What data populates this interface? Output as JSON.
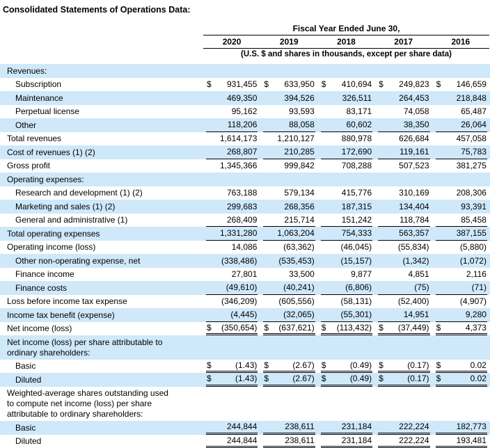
{
  "title": "Consolidated Statements of Operations Data:",
  "table": {
    "currency_symbol": "$",
    "header": {
      "group_label": "Fiscal Year Ended June 30,",
      "years": [
        "2020",
        "2019",
        "2018",
        "2017",
        "2016"
      ],
      "units_note": "(U.S. $ and shares in thousands, except per share data)"
    },
    "rows": [
      {
        "label": "Revenues:",
        "indent": 0,
        "stripe": true,
        "dollar": false,
        "underline": "none",
        "values": [
          "",
          "",
          "",
          "",
          ""
        ]
      },
      {
        "label": "Subscription",
        "indent": 1,
        "stripe": false,
        "dollar": true,
        "underline": "none",
        "values": [
          "931,455",
          "633,950",
          "410,694",
          "249,823",
          "146,659"
        ]
      },
      {
        "label": "Maintenance",
        "indent": 1,
        "stripe": true,
        "dollar": false,
        "underline": "none",
        "values": [
          "469,350",
          "394,526",
          "326,511",
          "264,453",
          "218,848"
        ]
      },
      {
        "label": "Perpetual license",
        "indent": 1,
        "stripe": false,
        "dollar": false,
        "underline": "none",
        "values": [
          "95,162",
          "93,593",
          "83,171",
          "74,058",
          "65,487"
        ]
      },
      {
        "label": "Other",
        "indent": 1,
        "stripe": true,
        "dollar": false,
        "underline": "single",
        "values": [
          "118,206",
          "88,058",
          "60,602",
          "38,350",
          "26,064"
        ]
      },
      {
        "label": "Total revenues",
        "indent": 0,
        "stripe": false,
        "dollar": false,
        "underline": "none",
        "values": [
          "1,614,173",
          "1,210,127",
          "880,978",
          "626,684",
          "457,058"
        ]
      },
      {
        "label": "Cost of revenues (1) (2)",
        "indent": 0,
        "stripe": true,
        "dollar": false,
        "underline": "single",
        "values": [
          "268,807",
          "210,285",
          "172,690",
          "119,161",
          "75,783"
        ]
      },
      {
        "label": "Gross profit",
        "indent": 0,
        "stripe": false,
        "dollar": false,
        "underline": "none",
        "values": [
          "1,345,366",
          "999,842",
          "708,288",
          "507,523",
          "381,275"
        ]
      },
      {
        "label": "Operating expenses:",
        "indent": 0,
        "stripe": true,
        "dollar": false,
        "underline": "none",
        "values": [
          "",
          "",
          "",
          "",
          ""
        ]
      },
      {
        "label": "Research and development (1) (2)",
        "indent": 1,
        "stripe": false,
        "dollar": false,
        "underline": "none",
        "values": [
          "763,188",
          "579,134",
          "415,776",
          "310,169",
          "208,306"
        ]
      },
      {
        "label": "Marketing and sales (1) (2)",
        "indent": 1,
        "stripe": true,
        "dollar": false,
        "underline": "none",
        "values": [
          "299,683",
          "268,356",
          "187,315",
          "134,404",
          "93,391"
        ]
      },
      {
        "label": "General and administrative (1)",
        "indent": 1,
        "stripe": false,
        "dollar": false,
        "underline": "single",
        "values": [
          "268,409",
          "215,714",
          "151,242",
          "118,784",
          "85,458"
        ]
      },
      {
        "label": "Total operating expenses",
        "indent": 0,
        "stripe": true,
        "dollar": false,
        "underline": "single",
        "values": [
          "1,331,280",
          "1,063,204",
          "754,333",
          "563,357",
          "387,155"
        ]
      },
      {
        "label": "Operating income (loss)",
        "indent": 0,
        "stripe": false,
        "dollar": false,
        "underline": "none",
        "values": [
          "14,086",
          "(63,362)",
          "(46,045)",
          "(55,834)",
          "(5,880)"
        ]
      },
      {
        "label": "Other non-operating expense, net",
        "indent": 1,
        "stripe": true,
        "dollar": false,
        "underline": "none",
        "values": [
          "(338,486)",
          "(535,453)",
          "(15,157)",
          "(1,342)",
          "(1,072)"
        ]
      },
      {
        "label": "Finance income",
        "indent": 1,
        "stripe": false,
        "dollar": false,
        "underline": "none",
        "values": [
          "27,801",
          "33,500",
          "9,877",
          "4,851",
          "2,116"
        ]
      },
      {
        "label": "Finance costs",
        "indent": 1,
        "stripe": true,
        "dollar": false,
        "underline": "single",
        "values": [
          "(49,610)",
          "(40,241)",
          "(6,806)",
          "(75)",
          "(71)"
        ]
      },
      {
        "label": "Loss before income tax expense",
        "indent": 0,
        "stripe": false,
        "dollar": false,
        "underline": "none",
        "values": [
          "(346,209)",
          "(605,556)",
          "(58,131)",
          "(52,400)",
          "(4,907)"
        ]
      },
      {
        "label": "Income tax benefit (expense)",
        "indent": 0,
        "stripe": true,
        "dollar": false,
        "underline": "single",
        "values": [
          "(4,445)",
          "(32,065)",
          "(55,301)",
          "14,951",
          "9,280"
        ]
      },
      {
        "label": "Net income (loss)",
        "indent": 0,
        "stripe": false,
        "dollar": true,
        "underline": "double",
        "values": [
          "(350,654)",
          "(637,621)",
          "(113,432)",
          "(37,449)",
          "4,373"
        ]
      },
      {
        "label": "Net income (loss) per share attributable to ordinary shareholders:",
        "indent": 0,
        "stripe": true,
        "dollar": false,
        "underline": "none",
        "values": [
          "",
          "",
          "",
          "",
          ""
        ]
      },
      {
        "label": "Basic",
        "indent": 1,
        "stripe": false,
        "dollar": true,
        "underline": "double",
        "values": [
          "(1.43)",
          "(2.67)",
          "(0.49)",
          "(0.17)",
          "0.02"
        ]
      },
      {
        "label": "Diluted",
        "indent": 1,
        "stripe": true,
        "dollar": true,
        "underline": "double",
        "values": [
          "(1.43)",
          "(2.67)",
          "(0.49)",
          "(0.17)",
          "0.02"
        ]
      },
      {
        "label": "Weighted-average shares outstanding used to compute net income (loss) per share attributable to ordinary shareholders:",
        "indent": 0,
        "stripe": false,
        "dollar": false,
        "underline": "none",
        "values": [
          "",
          "",
          "",
          "",
          ""
        ]
      },
      {
        "label": "Basic",
        "indent": 1,
        "stripe": true,
        "dollar": false,
        "underline": "double",
        "values": [
          "244,844",
          "238,611",
          "231,184",
          "222,224",
          "182,773"
        ]
      },
      {
        "label": "Diluted",
        "indent": 1,
        "stripe": false,
        "dollar": false,
        "underline": "double",
        "values": [
          "244,844",
          "238,611",
          "231,184",
          "222,224",
          "193,481"
        ]
      }
    ],
    "stripe_color": "#cfe8fa"
  }
}
